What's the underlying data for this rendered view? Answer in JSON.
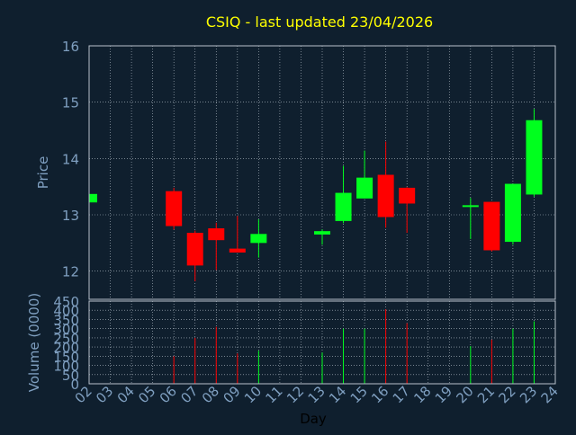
{
  "chart_data": {
    "type": "candlestick",
    "title": "CSIQ - last updated 23/04/2026",
    "xlabel": "Day",
    "ylabel": "Price",
    "volume_label": "Volume (0000)",
    "price_ylim": [
      11.5,
      16
    ],
    "price_ticks": [
      "12",
      "13",
      "14",
      "15",
      "16"
    ],
    "volume_ylim": [
      0,
      450
    ],
    "volume_ticks": [
      "0",
      "50",
      "100",
      "150",
      "200",
      "250",
      "300",
      "350",
      "400",
      "450"
    ],
    "x_ticks": [
      "02",
      "03",
      "04",
      "05",
      "06",
      "07",
      "08",
      "09",
      "10",
      "11",
      "12",
      "13",
      "14",
      "15",
      "16",
      "17",
      "18",
      "19",
      "20",
      "21",
      "22",
      "23",
      "24"
    ],
    "grid": true,
    "colors": {
      "background": "#0f1f2e",
      "up": "#00ff1e",
      "down": "#ff0000",
      "title": "#ffff00",
      "axis_text": "#7f9fc0"
    },
    "candles": [
      {
        "day": "02",
        "open": 13.22,
        "high": 13.38,
        "low": 13.2,
        "close": 13.37,
        "volume": 0
      },
      {
        "day": "06",
        "open": 13.42,
        "high": 13.48,
        "low": 12.74,
        "close": 12.8,
        "volume": 150
      },
      {
        "day": "07",
        "open": 12.68,
        "high": 12.72,
        "low": 11.82,
        "close": 12.1,
        "volume": 250
      },
      {
        "day": "08",
        "open": 12.76,
        "high": 12.86,
        "low": 12.02,
        "close": 12.55,
        "volume": 310
      },
      {
        "day": "09",
        "open": 12.4,
        "high": 12.98,
        "low": 12.33,
        "close": 12.33,
        "volume": 165
      },
      {
        "day": "10",
        "open": 12.5,
        "high": 12.92,
        "low": 12.24,
        "close": 12.66,
        "volume": 180
      },
      {
        "day": "13",
        "open": 12.65,
        "high": 12.74,
        "low": 12.47,
        "close": 12.71,
        "volume": 170
      },
      {
        "day": "14",
        "open": 12.89,
        "high": 13.87,
        "low": 12.85,
        "close": 13.39,
        "volume": 300
      },
      {
        "day": "15",
        "open": 13.29,
        "high": 14.14,
        "low": 13.29,
        "close": 13.66,
        "volume": 300
      },
      {
        "day": "16",
        "open": 13.71,
        "high": 14.3,
        "low": 12.77,
        "close": 12.96,
        "volume": 405
      },
      {
        "day": "17",
        "open": 13.48,
        "high": 13.49,
        "low": 12.68,
        "close": 13.2,
        "volume": 330
      },
      {
        "day": "20",
        "open": 13.14,
        "high": 13.3,
        "low": 12.57,
        "close": 13.17,
        "volume": 205
      },
      {
        "day": "21",
        "open": 13.23,
        "high": 13.23,
        "low": 12.35,
        "close": 12.37,
        "volume": 240
      },
      {
        "day": "22",
        "open": 12.52,
        "high": 13.55,
        "low": 12.47,
        "close": 13.55,
        "volume": 300
      },
      {
        "day": "23",
        "open": 13.36,
        "high": 14.88,
        "low": 13.32,
        "close": 14.68,
        "volume": 340
      }
    ]
  }
}
